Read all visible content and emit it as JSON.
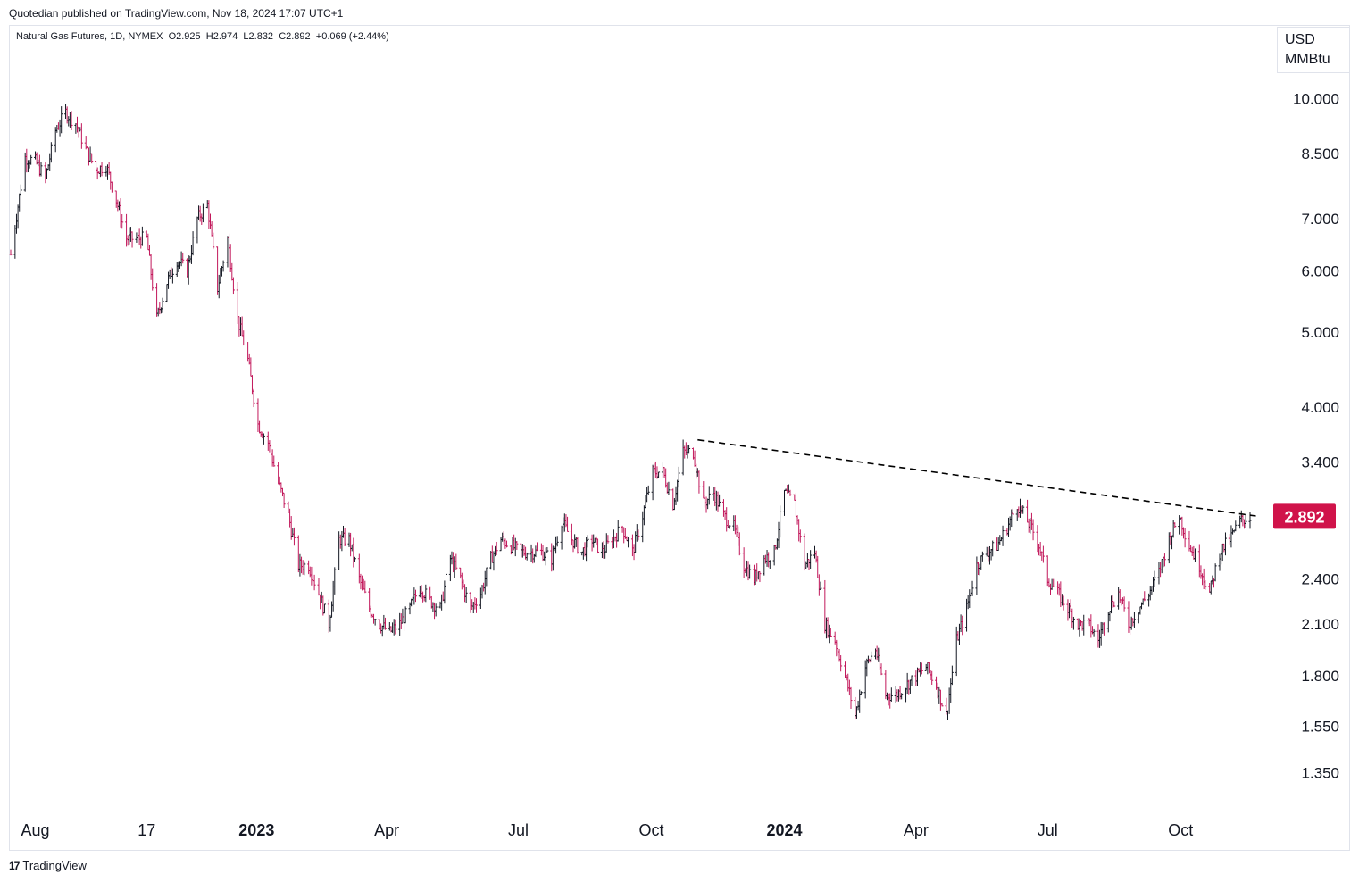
{
  "publisher": "Quotedian published on TradingView.com, Nov 18, 2024 17:07 UTC+1",
  "legend": {
    "symbol": "Natural Gas Futures, 1D, NYMEX",
    "open": "O2.925",
    "high": "H2.974",
    "low": "L2.832",
    "close": "C2.892",
    "change": "+0.069 (+2.44%)"
  },
  "unit": {
    "line1": "USD",
    "line2": "MMBtu"
  },
  "footer": {
    "logo_text": "TradingView",
    "logo_mark": "17"
  },
  "colors": {
    "up": "#131722",
    "down": "#c2185b",
    "price_label": "#d0134a",
    "trendline": "#000000"
  },
  "chart_data": {
    "type": "ohlc",
    "scale": "log",
    "ylim": [
      1.2,
      11.5
    ],
    "price_ticks": [
      "10.000",
      "8.500",
      "7.000",
      "6.000",
      "5.000",
      "4.000",
      "3.400",
      "2.400",
      "2.100",
      "1.800",
      "1.550",
      "1.350"
    ],
    "last_price": {
      "value": 2.892,
      "label": "2.892"
    },
    "time_labels": [
      {
        "label": "Aug",
        "date": "2022-08-01",
        "bold": false
      },
      {
        "label": "17",
        "date": "2022-10-17",
        "bold": false
      },
      {
        "label": "2023",
        "date": "2023-01-01",
        "bold": true
      },
      {
        "label": "Apr",
        "date": "2023-04-01",
        "bold": false
      },
      {
        "label": "Jul",
        "date": "2023-07-01",
        "bold": false
      },
      {
        "label": "Oct",
        "date": "2023-10-01",
        "bold": false
      },
      {
        "label": "2024",
        "date": "2024-01-01",
        "bold": true
      },
      {
        "label": "Apr",
        "date": "2024-04-01",
        "bold": false
      },
      {
        "label": "Jul",
        "date": "2024-07-01",
        "bold": false
      },
      {
        "label": "Oct",
        "date": "2024-10-01",
        "bold": false
      }
    ],
    "path": [
      [
        "2022-07-15",
        6.3
      ],
      [
        "2022-07-25",
        8.4
      ],
      [
        "2022-08-01",
        8.3
      ],
      [
        "2022-08-08",
        7.9
      ],
      [
        "2022-08-15",
        9.1
      ],
      [
        "2022-08-22",
        9.6
      ],
      [
        "2022-08-29",
        9.3
      ],
      [
        "2022-09-05",
        8.6
      ],
      [
        "2022-09-12",
        8.1
      ],
      [
        "2022-09-19",
        8.2
      ],
      [
        "2022-09-26",
        7.4
      ],
      [
        "2022-10-03",
        6.6
      ],
      [
        "2022-10-10",
        6.6
      ],
      [
        "2022-10-17",
        6.6
      ],
      [
        "2022-10-24",
        5.2
      ],
      [
        "2022-10-31",
        5.8
      ],
      [
        "2022-11-07",
        6.2
      ],
      [
        "2022-11-14",
        6.0
      ],
      [
        "2022-11-21",
        7.0
      ],
      [
        "2022-11-28",
        7.3
      ],
      [
        "2022-12-05",
        5.7
      ],
      [
        "2022-12-12",
        6.6
      ],
      [
        "2022-12-19",
        5.2
      ],
      [
        "2022-12-26",
        4.6
      ],
      [
        "2023-01-02",
        3.8
      ],
      [
        "2023-01-09",
        3.6
      ],
      [
        "2023-01-16",
        3.2
      ],
      [
        "2023-01-23",
        2.9
      ],
      [
        "2023-01-30",
        2.5
      ],
      [
        "2023-02-06",
        2.5
      ],
      [
        "2023-02-13",
        2.3
      ],
      [
        "2023-02-20",
        2.1
      ],
      [
        "2023-02-27",
        2.7
      ],
      [
        "2023-03-06",
        2.7
      ],
      [
        "2023-03-13",
        2.4
      ],
      [
        "2023-03-20",
        2.2
      ],
      [
        "2023-03-27",
        2.1
      ],
      [
        "2023-04-03",
        2.05
      ],
      [
        "2023-04-10",
        2.1
      ],
      [
        "2023-04-17",
        2.2
      ],
      [
        "2023-04-24",
        2.35
      ],
      [
        "2023-05-01",
        2.25
      ],
      [
        "2023-05-08",
        2.2
      ],
      [
        "2023-05-15",
        2.55
      ],
      [
        "2023-05-22",
        2.4
      ],
      [
        "2023-05-29",
        2.2
      ],
      [
        "2023-06-05",
        2.3
      ],
      [
        "2023-06-12",
        2.55
      ],
      [
        "2023-06-19",
        2.7
      ],
      [
        "2023-06-26",
        2.65
      ],
      [
        "2023-07-03",
        2.6
      ],
      [
        "2023-07-10",
        2.6
      ],
      [
        "2023-07-17",
        2.6
      ],
      [
        "2023-07-24",
        2.55
      ],
      [
        "2023-07-31",
        2.85
      ],
      [
        "2023-08-07",
        2.7
      ],
      [
        "2023-08-14",
        2.6
      ],
      [
        "2023-08-21",
        2.7
      ],
      [
        "2023-08-28",
        2.6
      ],
      [
        "2023-09-04",
        2.7
      ],
      [
        "2023-09-11",
        2.8
      ],
      [
        "2023-09-18",
        2.6
      ],
      [
        "2023-09-25",
        2.9
      ],
      [
        "2023-10-02",
        3.3
      ],
      [
        "2023-10-09",
        3.3
      ],
      [
        "2023-10-16",
        3.0
      ],
      [
        "2023-10-23",
        3.5
      ],
      [
        "2023-10-30",
        3.5
      ],
      [
        "2023-11-06",
        3.0
      ],
      [
        "2023-11-13",
        3.1
      ],
      [
        "2023-11-20",
        2.9
      ],
      [
        "2023-11-27",
        2.8
      ],
      [
        "2023-12-04",
        2.5
      ],
      [
        "2023-12-11",
        2.4
      ],
      [
        "2023-12-18",
        2.55
      ],
      [
        "2023-12-25",
        2.6
      ],
      [
        "2024-01-01",
        3.1
      ],
      [
        "2024-01-08",
        3.0
      ],
      [
        "2024-01-15",
        2.5
      ],
      [
        "2024-01-22",
        2.6
      ],
      [
        "2024-01-29",
        2.1
      ],
      [
        "2024-02-05",
        2.0
      ],
      [
        "2024-02-12",
        1.8
      ],
      [
        "2024-02-19",
        1.6
      ],
      [
        "2024-02-26",
        1.85
      ],
      [
        "2024-03-04",
        1.95
      ],
      [
        "2024-03-11",
        1.7
      ],
      [
        "2024-03-18",
        1.7
      ],
      [
        "2024-03-25",
        1.75
      ],
      [
        "2024-04-01",
        1.8
      ],
      [
        "2024-04-08",
        1.85
      ],
      [
        "2024-04-15",
        1.75
      ],
      [
        "2024-04-22",
        1.6
      ],
      [
        "2024-04-29",
        2.0
      ],
      [
        "2024-05-06",
        2.2
      ],
      [
        "2024-05-13",
        2.5
      ],
      [
        "2024-05-20",
        2.6
      ],
      [
        "2024-05-27",
        2.65
      ],
      [
        "2024-06-03",
        2.8
      ],
      [
        "2024-06-10",
        3.0
      ],
      [
        "2024-06-17",
        2.85
      ],
      [
        "2024-06-24",
        2.7
      ],
      [
        "2024-07-01",
        2.4
      ],
      [
        "2024-07-08",
        2.3
      ],
      [
        "2024-07-15",
        2.2
      ],
      [
        "2024-07-22",
        2.1
      ],
      [
        "2024-07-29",
        2.1
      ],
      [
        "2024-08-05",
        2.0
      ],
      [
        "2024-08-12",
        2.2
      ],
      [
        "2024-08-19",
        2.3
      ],
      [
        "2024-08-26",
        2.1
      ],
      [
        "2024-09-02",
        2.2
      ],
      [
        "2024-09-09",
        2.3
      ],
      [
        "2024-09-16",
        2.45
      ],
      [
        "2024-09-23",
        2.7
      ],
      [
        "2024-09-30",
        2.9
      ],
      [
        "2024-10-07",
        2.65
      ],
      [
        "2024-10-14",
        2.5
      ],
      [
        "2024-10-21",
        2.3
      ],
      [
        "2024-10-28",
        2.6
      ],
      [
        "2024-11-04",
        2.7
      ],
      [
        "2024-11-11",
        2.85
      ],
      [
        "2024-11-18",
        2.89
      ]
    ],
    "trendline": {
      "start": [
        "2023-11-02",
        3.63
      ],
      "end": [
        "2024-11-25",
        2.89
      ],
      "style": "dashed"
    }
  }
}
